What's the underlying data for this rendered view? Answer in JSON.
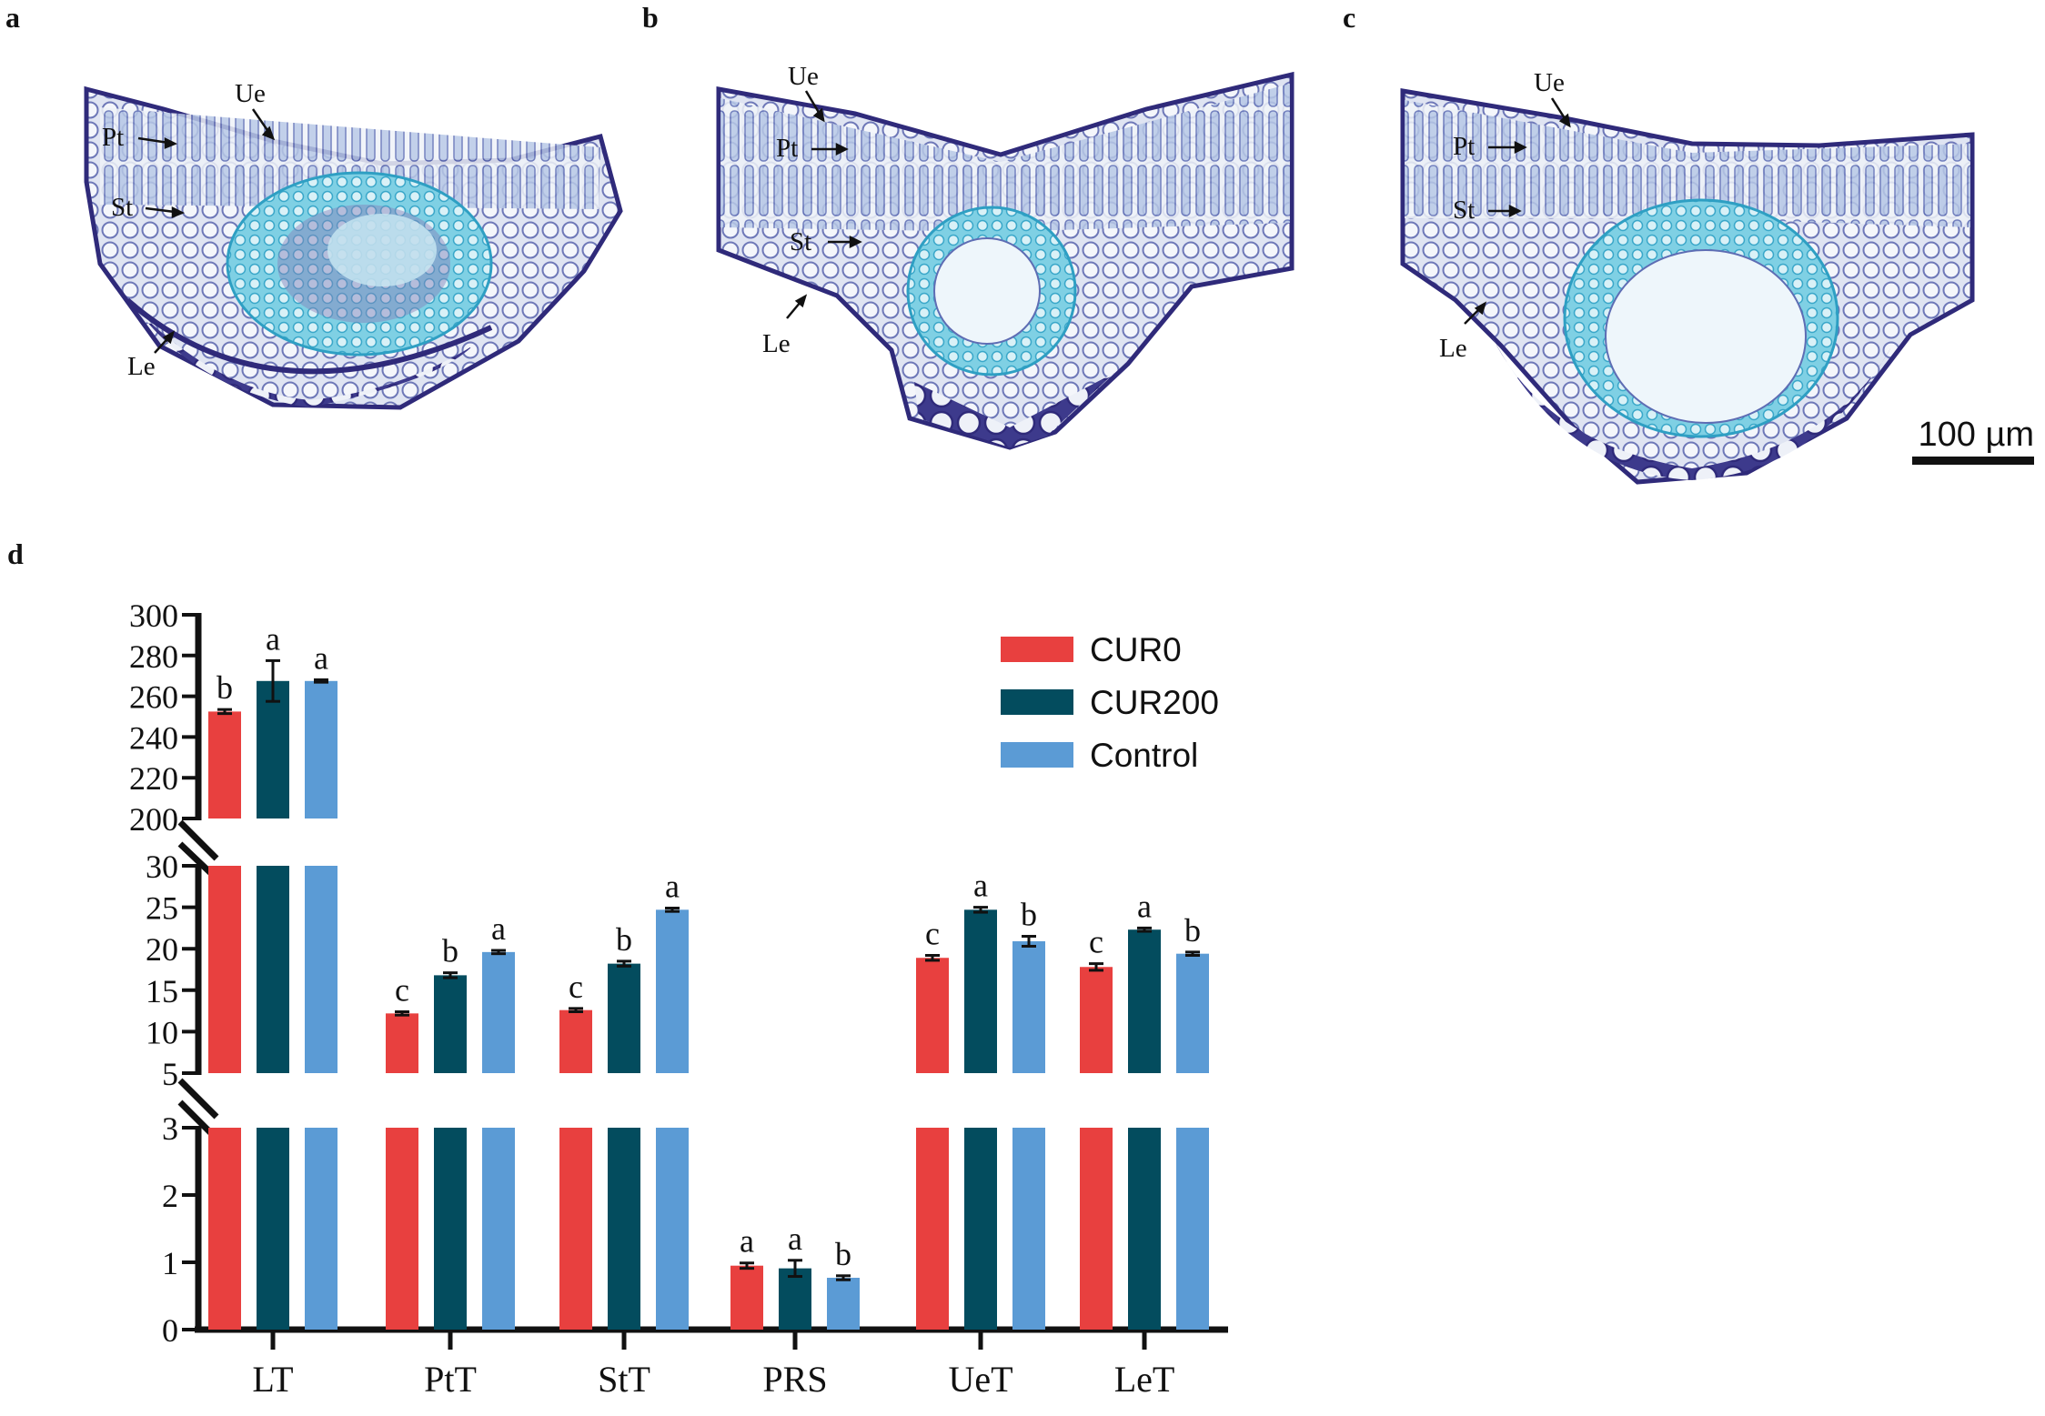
{
  "panels": [
    {
      "label": "a",
      "annotations": [
        "Ue",
        "Pt",
        "St",
        "Le"
      ]
    },
    {
      "label": "b",
      "annotations": [
        "Ue",
        "Pt",
        "St",
        "Le"
      ]
    },
    {
      "label": "c",
      "annotations": [
        "Ue",
        "Pt",
        "St",
        "Le"
      ]
    }
  ],
  "scale_bar": "100 µm",
  "chart_label": "d",
  "colors": {
    "CUR0": "#e8403f",
    "CUR200": "#034c5e",
    "Control": "#5b9bd5",
    "tissue_outline": "#2f2a7a",
    "tissue_cell": "#8fa9d8",
    "vascular": "#5bc0d8"
  },
  "chart_data": {
    "type": "bar",
    "title": "",
    "xlabel": "",
    "ylabel": "",
    "categories": [
      "LT",
      "PtT",
      "StT",
      "PRS",
      "UeT",
      "LeT"
    ],
    "series": [
      {
        "name": "CUR0",
        "values": [
          252.5,
          12.2,
          12.6,
          0.95,
          18.9,
          17.8
        ],
        "errors": [
          1,
          0.2,
          0.2,
          0.04,
          0.3,
          0.4
        ],
        "letters": [
          "b",
          "c",
          "c",
          "a",
          "c",
          "c"
        ]
      },
      {
        "name": "CUR200",
        "values": [
          267.5,
          16.8,
          18.2,
          0.91,
          24.7,
          22.3
        ],
        "errors": [
          10,
          0.3,
          0.3,
          0.12,
          0.3,
          0.2
        ],
        "letters": [
          "a",
          "b",
          "b",
          "a",
          "a",
          "a"
        ]
      },
      {
        "name": "Control",
        "values": [
          267.5,
          19.6,
          24.7,
          0.77,
          20.9,
          19.4
        ],
        "errors": [
          0.6,
          0.2,
          0.2,
          0.03,
          0.6,
          0.2
        ],
        "letters": [
          "a",
          "a",
          "a",
          "b",
          "b",
          "b"
        ]
      }
    ],
    "broken_axis_segments": [
      {
        "ylim": [
          200,
          300
        ],
        "ticks": [
          200,
          220,
          240,
          260,
          280,
          300
        ]
      },
      {
        "ylim": [
          5,
          30
        ],
        "ticks": [
          5,
          10,
          15,
          20,
          25,
          30
        ]
      },
      {
        "ylim": [
          0,
          3
        ],
        "ticks": [
          0,
          1,
          2,
          3
        ]
      }
    ],
    "legend": [
      "CUR0",
      "CUR200",
      "Control"
    ],
    "legend_position": "top-right"
  }
}
